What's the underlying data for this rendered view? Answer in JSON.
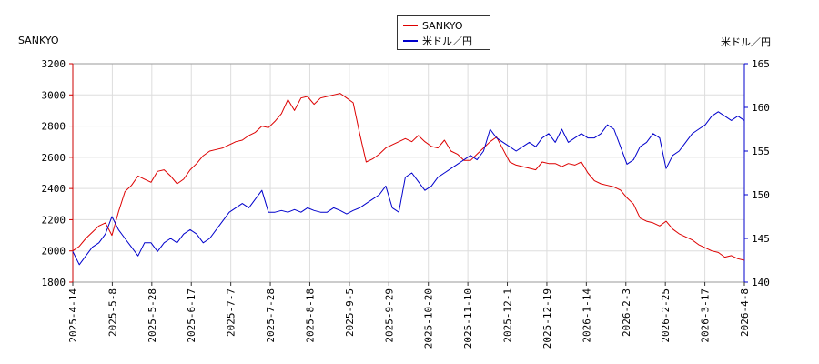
{
  "chart_data": {
    "type": "line",
    "left_axis_title": "SANKYO",
    "right_axis_title": "米ドル／円",
    "legend_position": "top-center",
    "grid": true,
    "x_labels": [
      "2025-4-14",
      "2025-5-8",
      "2025-5-28",
      "2025-6-17",
      "2025-7-7",
      "2025-7-28",
      "2025-8-18",
      "2025-9-5",
      "2025-9-29",
      "2025-10-20",
      "2025-11-10",
      "2025-12-1",
      "2025-12-19",
      "2026-1-14",
      "2026-2-3",
      "2026-2-25",
      "2026-3-17",
      "2026-4-8"
    ],
    "y_left": {
      "min": 1800,
      "max": 3200,
      "ticks": [
        1800,
        2000,
        2200,
        2400,
        2600,
        2800,
        3000,
        3200
      ]
    },
    "y_right": {
      "min": 140,
      "max": 165,
      "ticks": [
        140,
        145,
        150,
        155,
        160,
        165
      ]
    },
    "series": [
      {
        "name": "SANKYO",
        "axis": "left",
        "color": "#dd0000",
        "values": [
          2000,
          2030,
          2080,
          2120,
          2160,
          2180,
          2100,
          2250,
          2380,
          2420,
          2480,
          2460,
          2440,
          2510,
          2520,
          2480,
          2430,
          2460,
          2520,
          2560,
          2610,
          2640,
          2650,
          2660,
          2680,
          2700,
          2710,
          2740,
          2760,
          2800,
          2790,
          2830,
          2880,
          2970,
          2900,
          2980,
          2990,
          2940,
          2980,
          2990,
          3000,
          3010,
          2980,
          2950,
          2750,
          2570,
          2590,
          2620,
          2660,
          2680,
          2700,
          2720,
          2700,
          2740,
          2700,
          2670,
          2660,
          2710,
          2640,
          2620,
          2580,
          2580,
          2620,
          2660,
          2700,
          2730,
          2650,
          2570,
          2550,
          2540,
          2530,
          2520,
          2570,
          2560,
          2560,
          2540,
          2560,
          2550,
          2570,
          2500,
          2450,
          2430,
          2420,
          2410,
          2390,
          2340,
          2300,
          2210,
          2190,
          2180,
          2160,
          2190,
          2140,
          2110,
          2090,
          2070,
          2040,
          2020,
          2000,
          1990,
          1960,
          1970,
          1950,
          1940
        ]
      },
      {
        "name": "米ドル／円",
        "axis": "right",
        "color": "#0000cc",
        "values": [
          143.5,
          142.0,
          143.0,
          144.0,
          144.5,
          145.5,
          147.5,
          146.0,
          145.0,
          144.0,
          143.0,
          144.5,
          144.5,
          143.5,
          144.5,
          145.0,
          144.5,
          145.5,
          146.0,
          145.5,
          144.5,
          145.0,
          146.0,
          147.0,
          148.0,
          148.5,
          149.0,
          148.5,
          149.5,
          150.5,
          148.0,
          148.0,
          148.2,
          148.0,
          148.3,
          148.0,
          148.5,
          148.2,
          148.0,
          148.0,
          148.5,
          148.2,
          147.8,
          148.2,
          148.5,
          149.0,
          149.5,
          150.0,
          151.0,
          148.5,
          148.0,
          152.0,
          152.5,
          151.5,
          150.5,
          151.0,
          152.0,
          152.5,
          153.0,
          153.5,
          154.0,
          154.5,
          154.0,
          155.0,
          157.5,
          156.5,
          156.0,
          155.5,
          155.0,
          155.5,
          156.0,
          155.5,
          156.5,
          157.0,
          156.0,
          157.5,
          156.0,
          156.5,
          157.0,
          156.5,
          156.5,
          157.0,
          158.0,
          157.5,
          155.5,
          153.5,
          154.0,
          155.5,
          156.0,
          157.0,
          156.5,
          153.0,
          154.5,
          155.0,
          156.0,
          157.0,
          157.5,
          158.0,
          159.0,
          159.5,
          159.0,
          158.5,
          159.0,
          158.5
        ]
      }
    ]
  }
}
